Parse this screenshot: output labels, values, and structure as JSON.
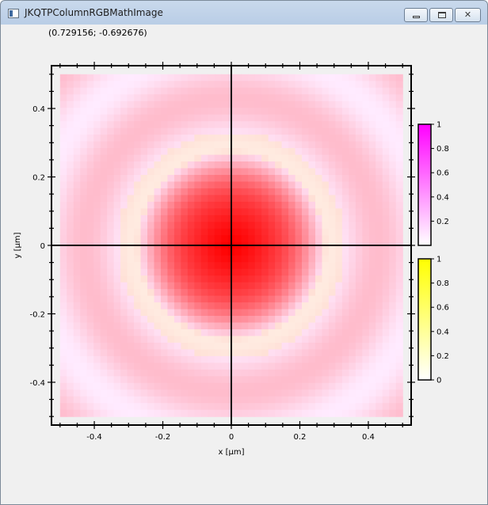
{
  "window": {
    "title": "JKQTPColumnRGBMathImage",
    "minimize_icon": "minimize-icon",
    "maximize_icon": "maximize-icon",
    "close_icon": "close-icon"
  },
  "coordinate_readout": "(0.729156; -0.692676)",
  "chart_data": {
    "type": "heatmap",
    "image_type": "rgb",
    "channels": [
      "red",
      "green",
      "blue"
    ],
    "description_rgb": "3-channel image on a 51x51 grid",
    "xlabel": "x [µm]",
    "ylabel": "y [µm]",
    "xlim": [
      -0.525,
      0.525
    ],
    "ylim": [
      -0.525,
      0.525
    ],
    "image_extent": {
      "x": [
        -0.5,
        0.5
      ],
      "y": [
        -0.5,
        0.5
      ]
    },
    "x_ticks": [
      "-0.4",
      "-0.2",
      "0",
      "0.2",
      "0.4"
    ],
    "x_tick_values": [
      -0.4,
      -0.2,
      0,
      0.2,
      0.4
    ],
    "y_ticks": [
      "0.4",
      "0.2",
      "0",
      "-0.2",
      "-0.4"
    ],
    "y_tick_values": [
      0.4,
      0.2,
      0,
      -0.2,
      -0.4
    ],
    "zero_axes": true,
    "colorbars": [
      {
        "channel": "blue",
        "color": "#ff00ff",
        "ticks": [
          "1",
          "0.8",
          "0.6",
          "0.4",
          "0.2"
        ],
        "tick_values": [
          1,
          0.8,
          0.6,
          0.4,
          0.2
        ],
        "range": [
          0,
          1
        ]
      },
      {
        "channel": "green",
        "color": "#ffff00",
        "ticks": [
          "1",
          "0.8",
          "0.6",
          "0.4",
          "0.2",
          "0"
        ],
        "tick_values": [
          1,
          0.8,
          0.6,
          0.4,
          0.2,
          0
        ],
        "range": [
          0,
          1
        ]
      }
    ],
    "colors": {
      "center": "#ff0000",
      "ring": "#ffffe8",
      "background": "#ffe8ff"
    }
  }
}
